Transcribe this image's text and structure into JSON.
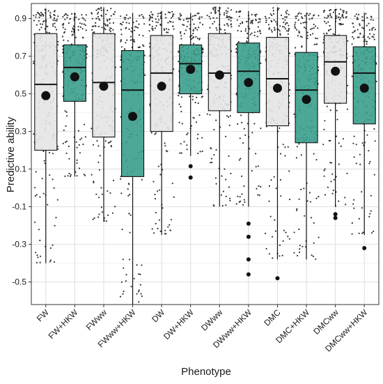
{
  "chart_data": {
    "type": "box",
    "xlabel": "Phenotype",
    "ylabel": "Predictive ability",
    "ylim": [
      -0.62,
      0.98
    ],
    "yticks": [
      -0.5,
      -0.3,
      -0.1,
      0.1,
      0.3,
      0.5,
      0.7,
      0.9
    ],
    "ytick_labels": [
      "-0.5",
      "-0.3",
      "-0.1",
      "0.1",
      "0.3",
      "0.5",
      "0.7",
      "0.9"
    ],
    "grid": true,
    "jitter_points": true,
    "colors": {
      "grey_box": "#e4e4e4",
      "teal_box": "#3a9f8c",
      "mean_dot": "#111111",
      "jitter": "#333333",
      "grid": "#dddddd",
      "panel_border": "#333333"
    },
    "categories": [
      "FW",
      "FW+HKW",
      "FWww",
      "FWww+HKW",
      "DW",
      "DW+HKW",
      "DWww",
      "DWww+HKW",
      "DMC",
      "DMC+HKW",
      "DMCww",
      "DMCww+HKW"
    ],
    "fill": [
      "grey",
      "teal",
      "grey",
      "teal",
      "grey",
      "teal",
      "grey",
      "teal",
      "grey",
      "teal",
      "grey",
      "teal"
    ],
    "boxes": [
      {
        "q1": 0.2,
        "median": 0.55,
        "q3": 0.82,
        "whisker_low": -0.4,
        "whisker_high": 0.95,
        "mean": 0.49,
        "outliers": []
      },
      {
        "q1": 0.46,
        "median": 0.64,
        "q3": 0.76,
        "whisker_low": 0.06,
        "whisker_high": 0.93,
        "mean": 0.59,
        "outliers": []
      },
      {
        "q1": 0.27,
        "median": 0.56,
        "q3": 0.82,
        "whisker_low": -0.18,
        "whisker_high": 0.96,
        "mean": 0.54,
        "outliers": []
      },
      {
        "q1": 0.06,
        "median": 0.52,
        "q3": 0.73,
        "whisker_low": -0.62,
        "whisker_high": 0.93,
        "mean": 0.38,
        "outliers": []
      },
      {
        "q1": 0.3,
        "median": 0.61,
        "q3": 0.81,
        "whisker_low": -0.25,
        "whisker_high": 0.94,
        "mean": 0.54,
        "outliers": []
      },
      {
        "q1": 0.5,
        "median": 0.66,
        "q3": 0.76,
        "whisker_low": 0.17,
        "whisker_high": 0.93,
        "mean": 0.63,
        "outliers": [
          0.115,
          0.055
        ]
      },
      {
        "q1": 0.41,
        "median": 0.61,
        "q3": 0.82,
        "whisker_low": -0.1,
        "whisker_high": 0.96,
        "mean": 0.6,
        "outliers": []
      },
      {
        "q1": 0.4,
        "median": 0.62,
        "q3": 0.77,
        "whisker_low": -0.1,
        "whisker_high": 0.94,
        "mean": 0.56,
        "outliers": [
          -0.19,
          -0.26,
          -0.38,
          -0.46
        ]
      },
      {
        "q1": 0.33,
        "median": 0.58,
        "q3": 0.8,
        "whisker_low": -0.38,
        "whisker_high": 0.96,
        "mean": 0.53,
        "outliers": [
          -0.48
        ]
      },
      {
        "q1": 0.24,
        "median": 0.52,
        "q3": 0.72,
        "whisker_low": -0.38,
        "whisker_high": 0.93,
        "mean": 0.47,
        "outliers": []
      },
      {
        "q1": 0.45,
        "median": 0.67,
        "q3": 0.81,
        "whisker_low": -0.1,
        "whisker_high": 0.95,
        "mean": 0.62,
        "outliers": [
          -0.14,
          -0.16
        ]
      },
      {
        "q1": 0.34,
        "median": 0.61,
        "q3": 0.75,
        "whisker_low": -0.25,
        "whisker_high": 0.93,
        "mean": 0.53,
        "outliers": [
          -0.32
        ]
      }
    ]
  }
}
